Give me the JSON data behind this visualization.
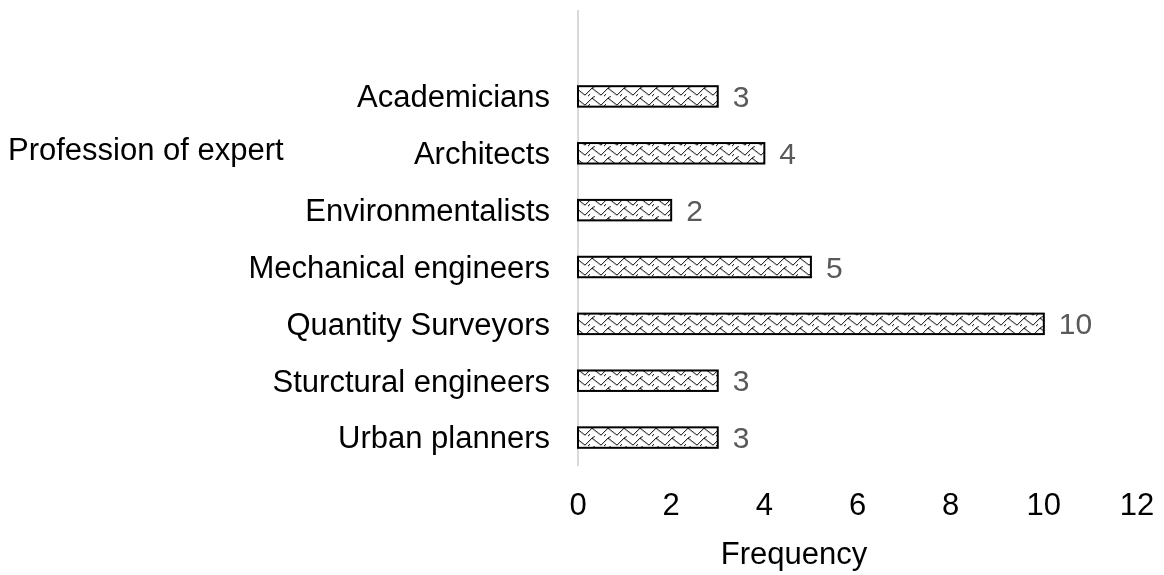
{
  "chart_data": {
    "type": "bar",
    "orientation": "horizontal",
    "categories": [
      "Academicians",
      "Architects",
      "Environmentalists",
      "Mechanical engineers",
      "Quantity Surveyors",
      "Sturctural engineers",
      "Urban planners"
    ],
    "values": [
      3,
      4,
      2,
      5,
      10,
      3,
      3
    ],
    "color": "#000000",
    "xlim": [
      0,
      12
    ],
    "xticks": [
      0,
      2,
      4,
      6,
      8,
      10,
      12
    ],
    "xlabel": "Frequency",
    "annotations": [
      "Profession of expert"
    ],
    "data_labels": true
  }
}
